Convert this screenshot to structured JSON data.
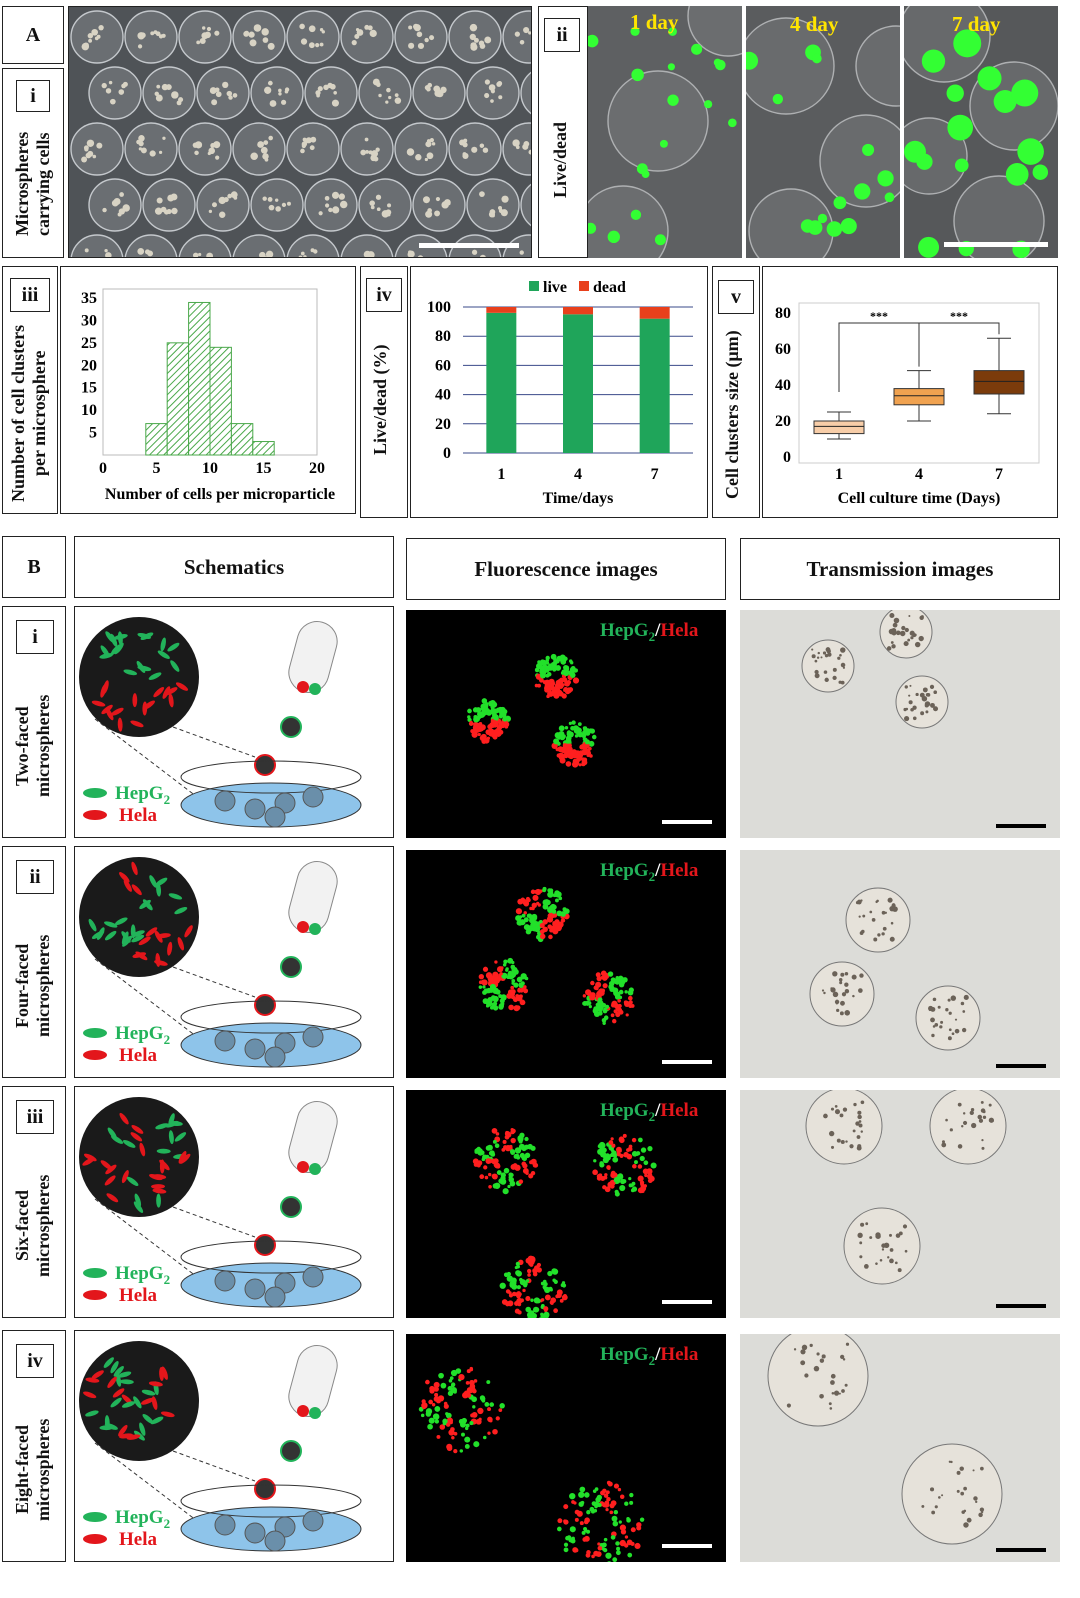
{
  "panelA": {
    "label": "A",
    "i": {
      "label": "i",
      "side": "Microspheres carrying cells"
    },
    "ii": {
      "label": "ii",
      "side": "Live/dead",
      "days": [
        "1 day",
        "4 day",
        "7 day"
      ]
    },
    "iii": {
      "label": "iii",
      "side": "Number of cell clusters per microsphere"
    },
    "iv": {
      "label": "iv",
      "side": "Live/dead (%)"
    },
    "v": {
      "label": "v",
      "side": "Cell clusters size (μm)"
    }
  },
  "panelB": {
    "label": "B",
    "headers": {
      "schematics": "Schematics",
      "fluorescence": "Fluorescence images",
      "transmission": "Transmission images"
    },
    "legend": {
      "hepg2": "HepG",
      "hepg2_sub": "2",
      "hela": "Hela",
      "slash": "/"
    },
    "rows": [
      {
        "label": "i",
        "side": "Two-faced microspheres"
      },
      {
        "label": "ii",
        "side": "Four-faced microspheres"
      },
      {
        "label": "iii",
        "side": "Six-faced microspheres"
      },
      {
        "label": "iv",
        "side": "Eight-faced microspheres"
      }
    ]
  },
  "colors": {
    "live": "#1fa55a",
    "dead": "#e8401c",
    "hepg2": "#22b35a",
    "hela": "#e3161b",
    "yellow": "#ffe400"
  },
  "chart_data": [
    {
      "type": "bar",
      "subtype": "histogram",
      "xlabel": "Number of cells  per microparticle",
      "ylabel": "",
      "xticks": [
        0,
        5,
        10,
        15,
        20
      ],
      "yticks": [
        5,
        10,
        15,
        20,
        25,
        30,
        35
      ],
      "xlim": [
        0,
        20
      ],
      "ylim": [
        0,
        37
      ],
      "bins": [
        [
          4,
          6
        ],
        [
          6,
          8
        ],
        [
          8,
          10
        ],
        [
          10,
          12
        ],
        [
          12,
          14
        ],
        [
          14,
          16
        ]
      ],
      "values": [
        7,
        25,
        34,
        24,
        7,
        3
      ],
      "grid": false,
      "pattern": "green-hatched"
    },
    {
      "type": "bar",
      "subtype": "stacked",
      "categories": [
        "1",
        "4",
        "7"
      ],
      "xlabel": "Time/days",
      "ylabel": "",
      "yticks": [
        0,
        20,
        40,
        60,
        80,
        100
      ],
      "ylim": [
        0,
        100
      ],
      "series": [
        {
          "name": "live",
          "values": [
            96,
            95,
            92
          ],
          "color": "#1fa55a"
        },
        {
          "name": "dead",
          "values": [
            4,
            5,
            8
          ],
          "color": "#e8401c"
        }
      ],
      "legend": "top-center",
      "grid": true
    },
    {
      "type": "box",
      "categories": [
        "1",
        "4",
        "7"
      ],
      "xlabel": "Cell culture time (Days)",
      "ylabel": "",
      "yticks": [
        0,
        20,
        40,
        60,
        80
      ],
      "ylim": [
        0,
        80
      ],
      "boxes": [
        {
          "min": 10,
          "q1": 13,
          "median": 17,
          "q3": 20,
          "max": 25,
          "color": "#f7cda8"
        },
        {
          "min": 20,
          "q1": 29,
          "median": 34,
          "q3": 38,
          "max": 48,
          "color": "#f0a250"
        },
        {
          "min": 24,
          "q1": 35,
          "median": 42,
          "q3": 48,
          "max": 66,
          "color": "#7b3b0b"
        }
      ],
      "annotations": [
        "***",
        "***"
      ]
    }
  ]
}
